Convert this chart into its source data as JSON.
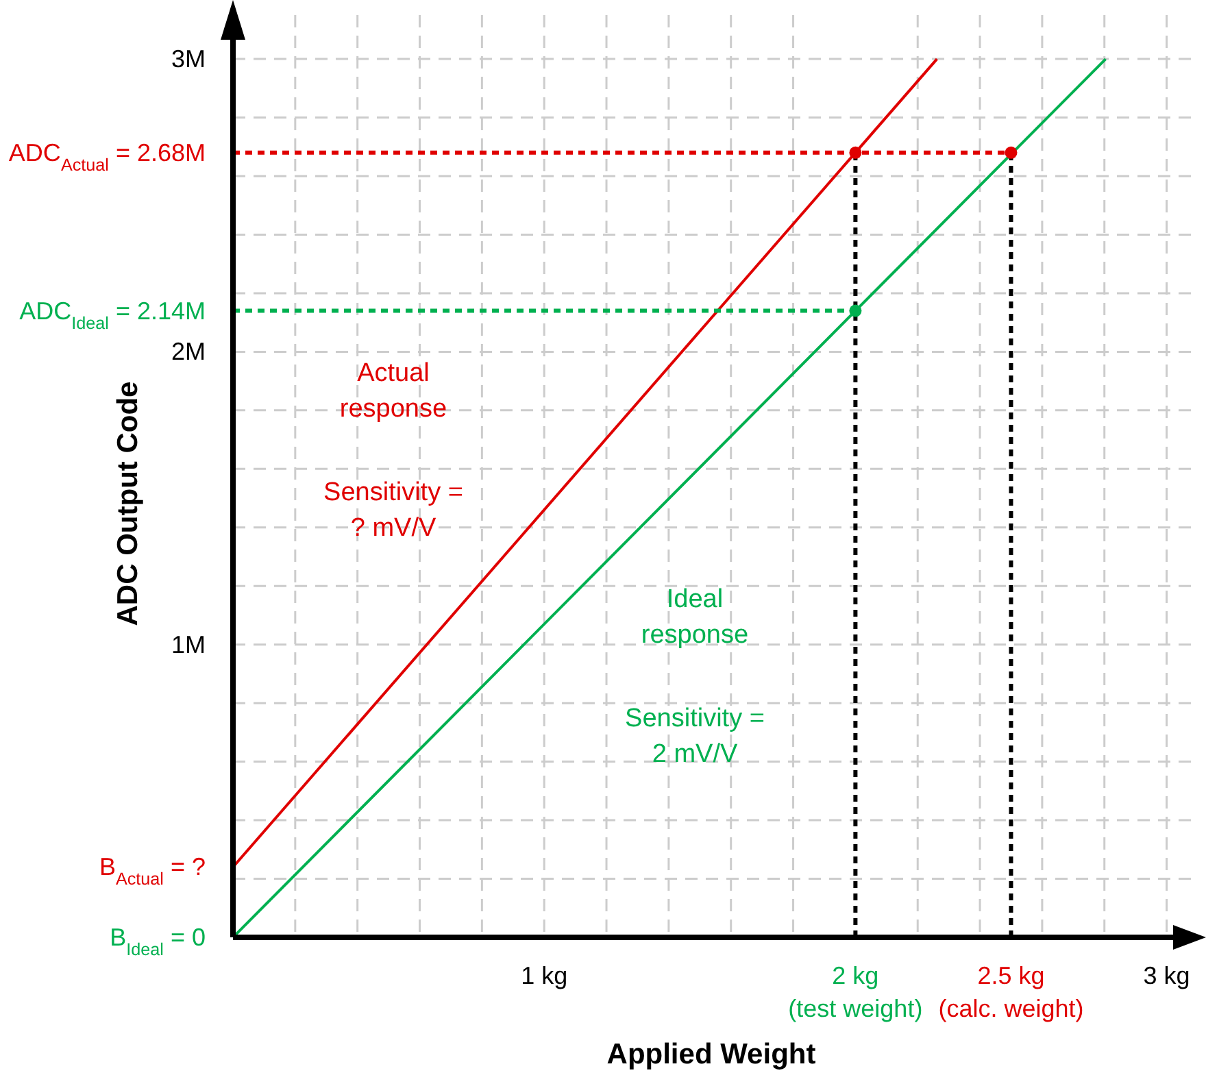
{
  "chart_data": {
    "type": "line",
    "xlabel": "Applied Weight",
    "ylabel": "ADC Output Code",
    "xlim": [
      0,
      3.1
    ],
    "ylim": [
      0,
      3150000
    ],
    "xticks": [
      {
        "value": 0.2,
        "label": null
      },
      {
        "value": 0.4,
        "label": null
      },
      {
        "value": 0.6,
        "label": null
      },
      {
        "value": 0.8,
        "label": null
      },
      {
        "value": 1,
        "label": "1 kg"
      },
      {
        "value": 1.2,
        "label": null
      },
      {
        "value": 1.4,
        "label": null
      },
      {
        "value": 1.6,
        "label": null
      },
      {
        "value": 1.8,
        "label": null
      },
      {
        "value": 2,
        "label": "2 kg\n(test weight)"
      },
      {
        "value": 2.2,
        "label": null
      },
      {
        "value": 2.4,
        "label": null
      },
      {
        "value": 2.5,
        "label": "2.5 kg\n(calc. weight)"
      },
      {
        "value": 2.6,
        "label": null
      },
      {
        "value": 2.8,
        "label": null
      },
      {
        "value": 3,
        "label": "3 kg"
      }
    ],
    "yticks": [
      {
        "value": 0,
        "label": "B$_{Ideal}$ = 0"
      },
      {
        "value": 200000,
        "label": null
      },
      {
        "value": 240000,
        "label": "B$_{Actual}$ = ?"
      },
      {
        "value": 400000,
        "label": null
      },
      {
        "value": 600000,
        "label": null
      },
      {
        "value": 800000,
        "label": null
      },
      {
        "value": 1000000,
        "label": "1M"
      },
      {
        "value": 1200000,
        "label": null
      },
      {
        "value": 1400000,
        "label": null
      },
      {
        "value": 1600000,
        "label": null
      },
      {
        "value": 1800000,
        "label": null
      },
      {
        "value": 2000000,
        "label": "2M"
      },
      {
        "value": 2140000,
        "label": "ADC$_{Ideal}$ = 2.14M"
      },
      {
        "value": 2200000,
        "label": null
      },
      {
        "value": 2400000,
        "label": null
      },
      {
        "value": 2600000,
        "label": null
      },
      {
        "value": 2680000,
        "label": "ADC$_{Actual}$ = 2.68M"
      },
      {
        "value": 2800000,
        "label": null
      },
      {
        "value": 3000000,
        "label": "3M"
      }
    ],
    "grid": true,
    "legend": false,
    "series": [
      {
        "name": "Actual response",
        "color": "#e00000",
        "x": [
          0,
          2.262
        ],
        "values": [
          240000,
          3000000
        ],
        "line_style": "solid",
        "marker": "none"
      },
      {
        "name": "Ideal response",
        "color": "#00b050",
        "x": [
          0,
          2.804
        ],
        "values": [
          0,
          3000000
        ],
        "line_style": "solid",
        "marker": "none"
      },
      {
        "type": "line",
        "color": "#e00000",
        "x": [
          0,
          2.5
        ],
        "values": [
          2680000,
          2680000
        ],
        "line_style": "dashed",
        "marker": "none"
      },
      {
        "type": "line",
        "color": "#00b050",
        "x": [
          0,
          2
        ],
        "values": [
          2140000,
          2140000
        ],
        "line_style": "dashed",
        "marker": "none"
      },
      {
        "type": "line",
        "color": "#000000",
        "x": [
          2,
          2
        ],
        "values": [
          0,
          2680000
        ],
        "line_style": "dashed",
        "marker": "none"
      },
      {
        "type": "line",
        "color": "#000000",
        "x": [
          2.5,
          2.5
        ],
        "values": [
          0,
          2680000
        ],
        "line_style": "dashed",
        "marker": "none"
      },
      {
        "type": "scatter",
        "color": "#e00000",
        "x": [
          2,
          2.5
        ],
        "values": [
          2680000,
          2680000
        ],
        "marker": "circle"
      },
      {
        "type": "scatter",
        "color": "#00b050",
        "x": [
          2
        ],
        "values": [
          2140000
        ],
        "marker": "circle"
      }
    ],
    "annotations": [
      "Sensitivity = ? mV/V",
      "Sensitivity = 2 mV/V"
    ]
  }
}
